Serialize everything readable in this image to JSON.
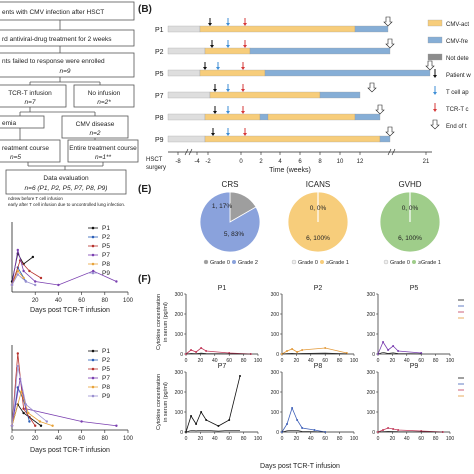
{
  "flow": {
    "boxes": [
      {
        "text": "ents with CMV infection after HSCT"
      },
      {
        "text": "rd antiviral-drug treatment for 2 weeks"
      },
      {
        "text": "nts failed to response were enrolled"
      },
      {
        "text": "n=9",
        "italic": true
      },
      {
        "text": "TCR-T infusion"
      },
      {
        "text": "n=7",
        "italic": true
      },
      {
        "text": "No infusion"
      },
      {
        "text": "n=2*",
        "italic": true
      },
      {
        "text": "emia"
      },
      {
        "text": "CMV disease"
      },
      {
        "text": "n=2",
        "italic": true
      },
      {
        "text": "reatment course"
      },
      {
        "text": "n=5",
        "italic": true
      },
      {
        "text": "Entire treatment course"
      },
      {
        "text": "n=1**",
        "italic": true
      },
      {
        "text": "Data evaluation"
      },
      {
        "text": "n=6 (P1, P2, P5, P7, P8, P9)"
      }
    ],
    "footnotes": [
      "ndrew before T cell infusion",
      "early after T cell infusion due to uncontrolled lung infection."
    ]
  },
  "panelB": {
    "label": "(B)",
    "rows": [
      "P1",
      "P2",
      "P5",
      "P7",
      "P8",
      "P9"
    ],
    "x_ticks": [
      "-8",
      "-4",
      "-2",
      "0",
      "2",
      "4",
      "6",
      "8",
      "10",
      "12",
      "21"
    ],
    "xlabel": "Time (weeks)",
    "hsct_label": [
      "HSCT",
      "surgery"
    ],
    "legend": [
      "CMV-act",
      "CMV-fre",
      "Not dete",
      "Patient w",
      "T cell ap",
      "TCR-T c",
      "End of t"
    ],
    "colors": {
      "active": "#f7cd7b",
      "free": "#86aed6",
      "notdet": "#8c8c8c",
      "pre": "#dedede",
      "black": "#111111",
      "blue": "#3d8ed6",
      "red": "#d63838"
    }
  },
  "panelE": {
    "label": "(E)",
    "pies": [
      {
        "title": "CRS",
        "labels": [
          "1, 17%",
          "5, 83%"
        ],
        "values": [
          1,
          5
        ],
        "colors": [
          "#9e9e9e",
          "#8aa2dc"
        ],
        "legend": [
          "Grade 0",
          "Grade 2"
        ]
      },
      {
        "title": "ICANS",
        "labels": [
          "0, 0%",
          "6, 100%"
        ],
        "values": [
          0,
          6
        ],
        "colors": [
          "#ffffff",
          "#f7cd7b"
        ],
        "legend": [
          "Grade 0",
          "≥Grade 1"
        ]
      },
      {
        "title": "GVHD",
        "labels": [
          "0, 0%",
          "6, 100%"
        ],
        "values": [
          0,
          6
        ],
        "colors": [
          "#ffffff",
          "#9fcd8a"
        ],
        "legend": [
          "Grade 0",
          "≥Grade 1"
        ]
      }
    ]
  },
  "panelF": {
    "label": "(F)",
    "titles": [
      "P1",
      "P2",
      "P5",
      "P7",
      "P8",
      "P9"
    ],
    "ylabel": "Cytokine concentration in serum (pg/ml)",
    "ylabel_lines": [
      "Cytokine concentration",
      "in serum (pg/ml)"
    ],
    "y_ticks_top": [
      "300",
      "200",
      "100",
      "0"
    ],
    "y_ticks_bottom": [
      "300",
      "200",
      "100",
      "0"
    ],
    "x_ticks": [
      "0",
      "20",
      "40",
      "60",
      "80",
      "100"
    ],
    "xlabel": "Days post TCR-T infusion"
  },
  "leftCharts": {
    "legend": [
      "P1",
      "P2",
      "P5",
      "P7",
      "P8",
      "P9"
    ],
    "xlabel": "Days post TCR-T infusion",
    "x_ticks_top": [
      "20",
      "40",
      "60",
      "80",
      "100"
    ],
    "x_ticks_bottom": [
      "0",
      "20",
      "40",
      "60",
      "80",
      "100"
    ],
    "series_colors": [
      "#111111",
      "#2b5fb8",
      "#b7312c",
      "#7a3fb0",
      "#e8a33a",
      "#9a8fd0"
    ]
  },
  "chart_data": [
    {
      "type": "pie",
      "title": "CRS",
      "categories": [
        "Grade 0",
        "Grade 2"
      ],
      "values": [
        1,
        5
      ]
    },
    {
      "type": "pie",
      "title": "ICANS",
      "categories": [
        "Grade 0",
        "≥Grade 1"
      ],
      "values": [
        0,
        6
      ]
    },
    {
      "type": "pie",
      "title": "GVHD",
      "categories": [
        "Grade 0",
        "≥Grade 1"
      ],
      "values": [
        0,
        6
      ]
    },
    {
      "type": "line",
      "panel": "left-top",
      "xlabel": "Days post TCR-T infusion",
      "series": [
        {
          "name": "P1",
          "x": [
            0,
            5,
            10,
            18
          ],
          "y": [
            0.15,
            0.55,
            0.4,
            0.5
          ]
        },
        {
          "name": "P2",
          "x": [
            0,
            5,
            12
          ],
          "y": [
            0.1,
            0.35,
            0.15
          ]
        },
        {
          "name": "P5",
          "x": [
            0,
            7,
            15,
            25
          ],
          "y": [
            0.1,
            0.45,
            0.3,
            0.2
          ]
        },
        {
          "name": "P7",
          "x": [
            0,
            5,
            10,
            20,
            40,
            70,
            90
          ],
          "y": [
            0.1,
            0.6,
            0.3,
            0.15,
            0.1,
            0.3,
            0.15
          ]
        },
        {
          "name": "P8",
          "x": [
            0,
            5,
            10
          ],
          "y": [
            0.1,
            0.3,
            0.2
          ]
        },
        {
          "name": "P9",
          "x": [
            0,
            5,
            12,
            20
          ],
          "y": [
            0.1,
            0.25,
            0.15,
            0.1
          ]
        }
      ]
    },
    {
      "type": "line",
      "panel": "left-bottom",
      "xlabel": "Days post TCR-T infusion",
      "series": [
        {
          "name": "P1",
          "x": [
            0,
            5,
            10,
            15,
            25
          ],
          "y": [
            0.05,
            0.3,
            0.2,
            0.15,
            0.05
          ]
        },
        {
          "name": "P2",
          "x": [
            0,
            5,
            10,
            15
          ],
          "y": [
            0.05,
            0.5,
            0.35,
            0.1
          ]
        },
        {
          "name": "P5",
          "x": [
            0,
            5,
            10,
            20
          ],
          "y": [
            0.05,
            0.9,
            0.25,
            0.05
          ]
        },
        {
          "name": "P7",
          "x": [
            0,
            7,
            12,
            60,
            90
          ],
          "y": [
            0.05,
            0.6,
            0.25,
            0.1,
            0.05
          ]
        },
        {
          "name": "P8",
          "x": [
            0,
            8,
            14,
            24,
            35
          ],
          "y": [
            0.05,
            0.45,
            0.2,
            0.1,
            0.05
          ]
        },
        {
          "name": "P9",
          "x": [
            0,
            5,
            12,
            30
          ],
          "y": [
            0.05,
            0.75,
            0.3,
            0.1
          ]
        }
      ]
    },
    {
      "type": "line",
      "panel": "F",
      "titles": [
        "P1",
        "P2",
        "P5",
        "P7",
        "P8",
        "P9"
      ],
      "ylim": [
        0,
        300
      ],
      "xlabel": "Days post TCR-T infusion",
      "ylabel": "Cytokine concentration in serum (pg/ml)",
      "series": [
        {
          "panel": "P1",
          "x": [
            0,
            7,
            14,
            21,
            28,
            60,
            90
          ],
          "y": [
            0,
            20,
            10,
            30,
            15,
            5,
            0
          ]
        },
        {
          "panel": "P2",
          "x": [
            0,
            7,
            14,
            21,
            28,
            60,
            90
          ],
          "y": [
            0,
            15,
            25,
            10,
            20,
            30,
            5
          ]
        },
        {
          "panel": "P5",
          "x": [
            0,
            7,
            14,
            21,
            28,
            60
          ],
          "y": [
            0,
            60,
            20,
            40,
            15,
            5
          ]
        },
        {
          "panel": "P7",
          "x": [
            0,
            7,
            14,
            21,
            28,
            45,
            60,
            75
          ],
          "y": [
            0,
            80,
            40,
            100,
            60,
            30,
            60,
            280
          ]
        },
        {
          "panel": "P8",
          "x": [
            0,
            7,
            14,
            21,
            28,
            45,
            60
          ],
          "y": [
            0,
            40,
            120,
            60,
            20,
            10,
            0
          ]
        },
        {
          "panel": "P9",
          "x": [
            0,
            7,
            14,
            21,
            28,
            60,
            90
          ],
          "y": [
            0,
            10,
            20,
            15,
            10,
            5,
            0
          ]
        }
      ]
    }
  ]
}
